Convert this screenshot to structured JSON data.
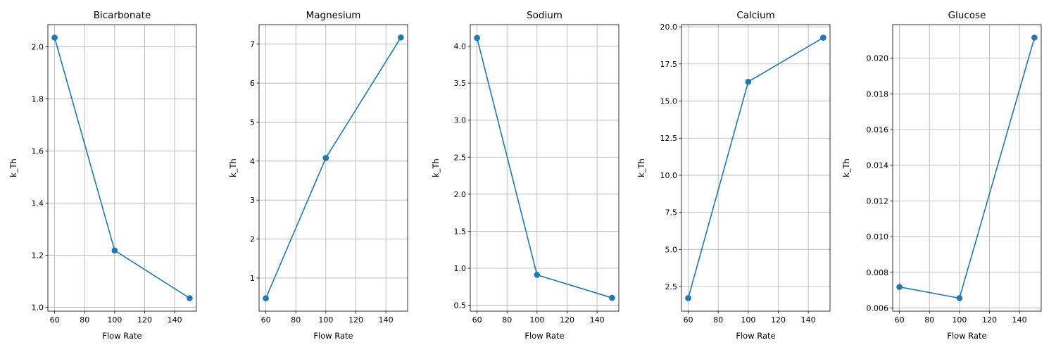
{
  "colors": {
    "line": "#1f77b4",
    "grid": "#b0b0b0",
    "axis": "#000000"
  },
  "chart_data": [
    {
      "type": "line",
      "title": "Bicarbonate",
      "xlabel": "Flow Rate",
      "ylabel": "k_Th",
      "x": [
        60,
        100,
        150
      ],
      "y": [
        2.035,
        1.218,
        1.035
      ],
      "xlim": [
        55.5,
        154.5
      ],
      "ylim": [
        0.985,
        2.085
      ],
      "xticks": [
        60,
        80,
        100,
        120,
        140
      ],
      "xtick_labels": [
        "60",
        "80",
        "100",
        "120",
        "140"
      ],
      "yticks": [
        1.0,
        1.2,
        1.4,
        1.6,
        1.8,
        2.0
      ],
      "ytick_labels": [
        "1.0",
        "1.2",
        "1.4",
        "1.6",
        "1.8",
        "2.0"
      ],
      "grid": true
    },
    {
      "type": "line",
      "title": "Magnesium",
      "xlabel": "Flow Rate",
      "ylabel": "k_Th",
      "x": [
        60,
        100,
        150
      ],
      "y": [
        0.48,
        4.08,
        7.17
      ],
      "xlim": [
        55.5,
        154.5
      ],
      "ylim": [
        0.15,
        7.5
      ],
      "xticks": [
        60,
        80,
        100,
        120,
        140
      ],
      "xtick_labels": [
        "60",
        "80",
        "100",
        "120",
        "140"
      ],
      "yticks": [
        1,
        2,
        3,
        4,
        5,
        6,
        7
      ],
      "ytick_labels": [
        "1",
        "2",
        "3",
        "4",
        "5",
        "6",
        "7"
      ],
      "grid": true
    },
    {
      "type": "line",
      "title": "Sodium",
      "xlabel": "Flow Rate",
      "ylabel": "k_Th",
      "x": [
        60,
        100,
        150
      ],
      "y": [
        4.11,
        0.91,
        0.6
      ],
      "xlim": [
        55.5,
        154.5
      ],
      "ylim": [
        0.42,
        4.29
      ],
      "xticks": [
        60,
        80,
        100,
        120,
        140
      ],
      "xtick_labels": [
        "60",
        "80",
        "100",
        "120",
        "140"
      ],
      "yticks": [
        0.5,
        1.0,
        1.5,
        2.0,
        2.5,
        3.0,
        3.5,
        4.0
      ],
      "ytick_labels": [
        "0.5",
        "1.0",
        "1.5",
        "2.0",
        "2.5",
        "3.0",
        "3.5",
        "4.0"
      ],
      "grid": true
    },
    {
      "type": "line",
      "title": "Calcium",
      "xlabel": "Flow Rate",
      "ylabel": "k_Th",
      "x": [
        60,
        100,
        150
      ],
      "y": [
        1.72,
        16.3,
        19.27
      ],
      "xlim": [
        55.5,
        154.5
      ],
      "ylim": [
        0.84,
        20.15
      ],
      "xticks": [
        60,
        80,
        100,
        120,
        140
      ],
      "xtick_labels": [
        "60",
        "80",
        "100",
        "120",
        "140"
      ],
      "yticks": [
        2.5,
        5.0,
        7.5,
        10.0,
        12.5,
        15.0,
        17.5,
        20.0
      ],
      "ytick_labels": [
        "2.5",
        "5.0",
        "7.5",
        "10.0",
        "12.5",
        "15.0",
        "17.5",
        "20.0"
      ],
      "grid": true
    },
    {
      "type": "line",
      "title": "Glucose",
      "xlabel": "Flow Rate",
      "ylabel": "k_Th",
      "x": [
        60,
        100,
        150
      ],
      "y": [
        0.00718,
        0.00655,
        0.02115
      ],
      "xlim": [
        55.5,
        154.5
      ],
      "ylim": [
        0.00582,
        0.02188
      ],
      "xticks": [
        60,
        80,
        100,
        120,
        140
      ],
      "xtick_labels": [
        "60",
        "80",
        "100",
        "120",
        "140"
      ],
      "yticks": [
        0.006,
        0.008,
        0.01,
        0.012,
        0.014,
        0.016,
        0.018,
        0.02
      ],
      "ytick_labels": [
        "0.006",
        "0.008",
        "0.010",
        "0.012",
        "0.014",
        "0.016",
        "0.018",
        "0.020"
      ],
      "grid": true
    }
  ]
}
